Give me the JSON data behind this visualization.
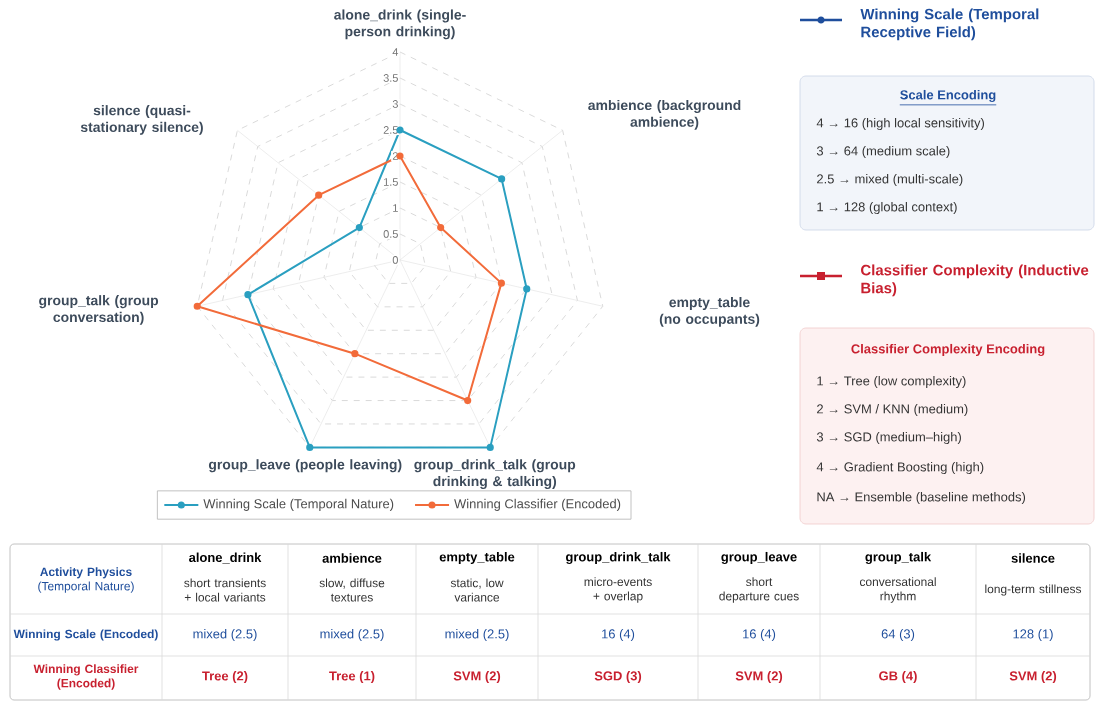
{
  "chart_data": {
    "type": "radar",
    "categories": [
      "alone_drink (single-person drinking)",
      "ambience (background ambience)",
      "empty_table (no occupants)",
      "group_drink_talk (group drinking & talking)",
      "group_leave (people leaving)",
      "group_talk (group conversation)",
      "silence (quasi-stationary silence)"
    ],
    "series": [
      {
        "name": "Winning Scale (Temporal Nature)",
        "color": "#2a9fc0",
        "values": [
          2.5,
          2.5,
          2.5,
          4,
          4,
          3,
          1
        ]
      },
      {
        "name": "Winning Classifier (Encoded)",
        "color": "#f26b3a",
        "values": [
          2,
          1,
          2,
          3,
          2,
          4,
          2
        ]
      }
    ],
    "ylim": [
      0,
      4
    ],
    "yticks": [
      0,
      0.5,
      1,
      1.5,
      2,
      2.5,
      3,
      3.5,
      4
    ],
    "grid": true,
    "legend": "bottom",
    "marker": "circle",
    "annotations": [
      "Winning Scale (Temporal Receptive Field)",
      "Scale Encoding",
      "4 → 16 (high local sensitivity)",
      "3 → 64 (medium scale)",
      "2.5 → mixed (multi-scale)",
      "1 → 128 (global context)",
      "Classifier Complexity (Inductive Bias)",
      "Classifier Complexity Encoding",
      "1 → Tree (low complexity)",
      "2 → SVM / KNN (medium)",
      "3 → SGD (medium–high)",
      "4 → Gradient Boosting (high)",
      "NA → Ensemble (baseline methods)",
      "**Activity Physics** (Temporal Nature)",
      "Winning Scale (Encoded)",
      "Winning Classifier (Encoded)",
      "alone_drink",
      "ambience",
      "empty_table",
      "group_drink_talk",
      "group_leave",
      "group_talk",
      "silence",
      "short transients + local variants",
      "slow, diffuse textures",
      "static, low variance",
      "micro-events + overlap",
      "short departure cues",
      "conversational rhythm",
      "long-term stillness",
      "mixed (2.5)",
      "mixed (2.5)",
      "mixed (2.5)",
      "16 (4)",
      "16 (4)",
      "64 (3)",
      "128 (1)",
      "Tree (2)",
      "Tree (1)",
      "SVM (2)",
      "SGD (3)",
      "SVM (2)",
      "GB (4)",
      "SVM (2)"
    ]
  }
}
